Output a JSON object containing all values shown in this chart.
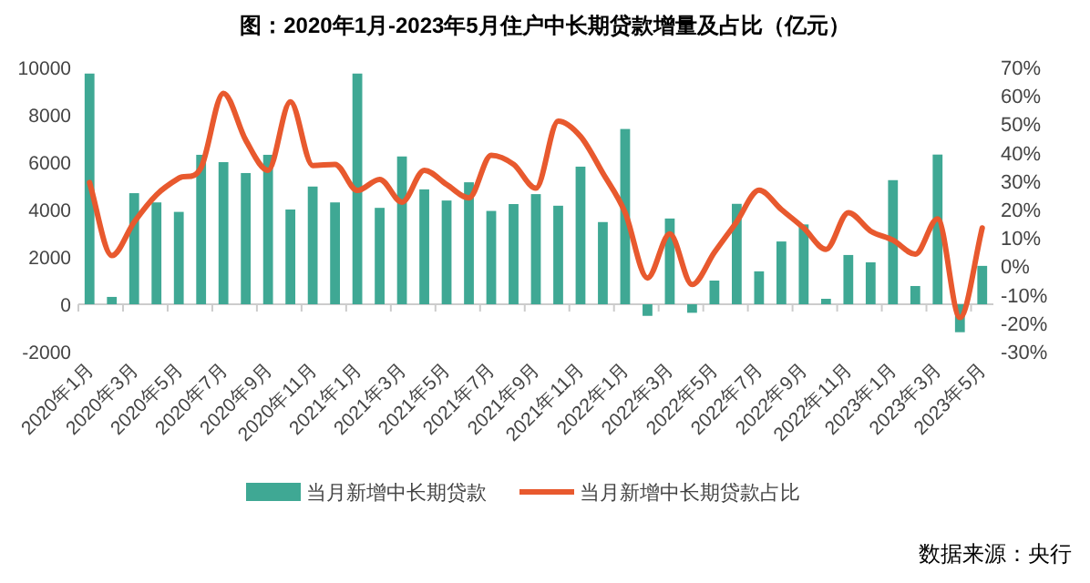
{
  "chart_data": {
    "type": "bar",
    "title": "图：2020年1月-2023年5月住户中长期贷款增量及占比（亿元）",
    "categories": [
      "2020年1月",
      null,
      "2020年3月",
      null,
      "2020年5月",
      null,
      "2020年7月",
      null,
      "2020年9月",
      null,
      "2020年11月",
      null,
      "2021年1月",
      null,
      "2021年3月",
      null,
      "2021年5月",
      null,
      "2021年7月",
      null,
      "2021年9月",
      null,
      "2021年11月",
      null,
      "2022年1月",
      null,
      "2022年3月",
      null,
      "2022年5月",
      null,
      "2022年7月",
      null,
      "2022年9月",
      null,
      "2022年11月",
      null,
      "2023年1月",
      null,
      "2023年3月",
      null,
      "2023年5月"
    ],
    "series": [
      {
        "name": "当月新增中长期贷款",
        "color": "#3fa894",
        "values": [
          9740,
          310,
          4690,
          4300,
          3900,
          6310,
          6000,
          5540,
          6310,
          4000,
          4970,
          4300,
          9740,
          4070,
          6240,
          4850,
          4380,
          5150,
          3940,
          4230,
          4650,
          4160,
          5810,
          3470,
          7400,
          -490,
          3620,
          -360,
          1000,
          4240,
          1390,
          2650,
          3370,
          230,
          2080,
          1770,
          5240,
          770,
          6320,
          -1180,
          1620
        ]
      },
      {
        "name": "当月新增中长期贷款占比",
        "type": "line",
        "axis": "y2",
        "color": "#e8592e",
        "values": [
          29.5,
          3.8,
          15.6,
          25.2,
          31,
          34.8,
          60.9,
          44.4,
          33.8,
          57.9,
          35.5,
          35.9,
          26.7,
          30.6,
          22.6,
          33.8,
          28.8,
          24.1,
          39.1,
          35.9,
          27.5,
          51.1,
          45.7,
          32.8,
          18.9,
          -4.1,
          11.4,
          -6.4,
          4.9,
          15.7,
          26.8,
          20,
          13.5,
          6,
          18.9,
          12.4,
          9.2,
          4.3,
          16.7,
          -18,
          13.5
        ]
      }
    ],
    "ylim": [
      -2000,
      10000
    ],
    "yticks": [
      -2000,
      0,
      2000,
      4000,
      6000,
      8000,
      10000
    ],
    "y2lim": [
      -30,
      70
    ],
    "y2ticks": [
      {
        "value": -30,
        "label": "-30%"
      },
      {
        "value": -20,
        "label": "-20%"
      },
      {
        "value": -10,
        "label": "-10%"
      },
      {
        "value": 0,
        "label": "0%"
      },
      {
        "value": 10,
        "label": "10%"
      },
      {
        "value": 20,
        "label": "20%"
      },
      {
        "value": 30,
        "label": "30%"
      },
      {
        "value": 40,
        "label": "40%"
      },
      {
        "value": 50,
        "label": "50%"
      },
      {
        "value": 60,
        "label": "60%"
      },
      {
        "value": 70,
        "label": "70%"
      }
    ],
    "legend": "bottom",
    "annotations": [
      "数据来源：央行"
    ]
  }
}
